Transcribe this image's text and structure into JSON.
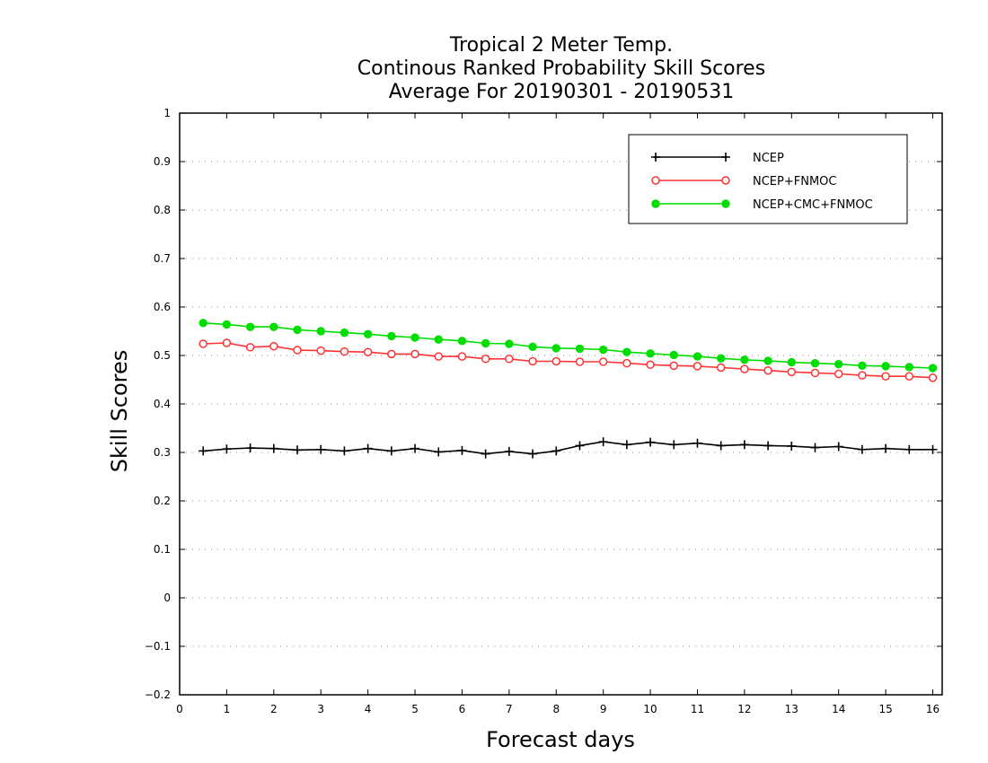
{
  "chart_data": {
    "type": "line",
    "title": [
      "Tropical 2 Meter Temp.",
      "Continous Ranked Probability Skill Scores",
      "Average For 20190301 - 20190531"
    ],
    "xlabel": "Forecast days",
    "ylabel": "Skill Scores",
    "xlim": [
      0,
      16.2
    ],
    "ylim": [
      -0.2,
      1.0
    ],
    "x_ticks": [
      0,
      1,
      2,
      3,
      4,
      5,
      6,
      7,
      8,
      9,
      10,
      11,
      12,
      13,
      14,
      15,
      16
    ],
    "y_ticks": [
      -0.2,
      -0.1,
      0,
      0.1,
      0.2,
      0.3,
      0.4,
      0.5,
      0.6,
      0.7,
      0.8,
      0.9,
      1
    ],
    "y_tick_labels": [
      "−0.2",
      "−0.1",
      "0",
      "0.1",
      "0.2",
      "0.3",
      "0.4",
      "0.5",
      "0.6",
      "0.7",
      "0.8",
      "0.9",
      "1"
    ],
    "grid": "horizontal dotted",
    "legend_position": "top-right",
    "x": [
      0.5,
      1.0,
      1.5,
      2.0,
      2.5,
      3.0,
      3.5,
      4.0,
      4.5,
      5.0,
      5.5,
      6.0,
      6.5,
      7.0,
      7.5,
      8.0,
      8.5,
      9.0,
      9.5,
      10.0,
      10.5,
      11.0,
      11.5,
      12.0,
      12.5,
      13.0,
      13.5,
      14.0,
      14.5,
      15.0,
      15.5,
      16.0
    ],
    "series": [
      {
        "name": "NCEP",
        "color": "#000000",
        "marker": "plus",
        "values": [
          0.303,
          0.307,
          0.309,
          0.308,
          0.305,
          0.306,
          0.303,
          0.308,
          0.303,
          0.308,
          0.301,
          0.304,
          0.297,
          0.302,
          0.297,
          0.303,
          0.314,
          0.322,
          0.316,
          0.321,
          0.316,
          0.319,
          0.314,
          0.316,
          0.314,
          0.313,
          0.31,
          0.312,
          0.306,
          0.308,
          0.306,
          0.306
        ]
      },
      {
        "name": "NCEP+FNMOC",
        "color": "#ff3333",
        "marker": "open-circle",
        "values": [
          0.524,
          0.526,
          0.517,
          0.519,
          0.511,
          0.51,
          0.508,
          0.507,
          0.503,
          0.503,
          0.498,
          0.498,
          0.493,
          0.493,
          0.488,
          0.488,
          0.487,
          0.487,
          0.484,
          0.481,
          0.479,
          0.478,
          0.475,
          0.472,
          0.469,
          0.466,
          0.464,
          0.462,
          0.459,
          0.457,
          0.457,
          0.454
        ]
      },
      {
        "name": "NCEP+CMC+FNMOC",
        "color": "#00dd00",
        "marker": "filled-circle",
        "values": [
          0.567,
          0.564,
          0.559,
          0.559,
          0.553,
          0.55,
          0.547,
          0.544,
          0.54,
          0.537,
          0.533,
          0.53,
          0.525,
          0.524,
          0.518,
          0.515,
          0.514,
          0.512,
          0.507,
          0.504,
          0.501,
          0.498,
          0.494,
          0.491,
          0.489,
          0.486,
          0.484,
          0.482,
          0.479,
          0.478,
          0.476,
          0.474
        ]
      }
    ]
  }
}
